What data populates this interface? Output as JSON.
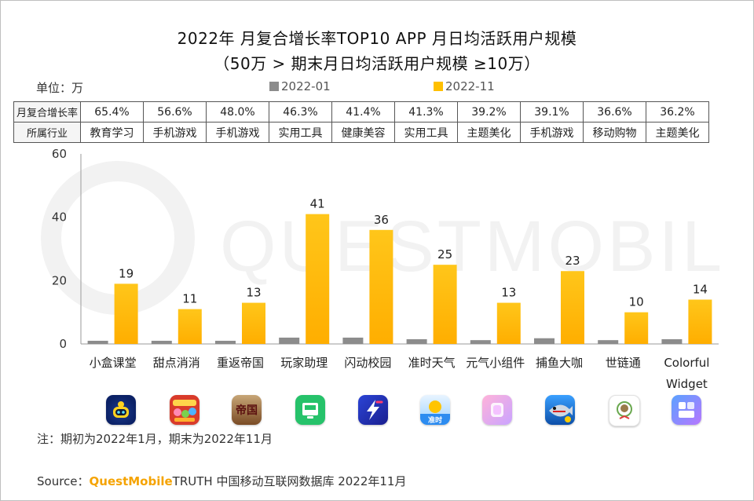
{
  "title": "2022年 月复合增长率TOP10 APP 月日均活跃用户规模",
  "subtitle": "（50万 > 期末月日均活跃用户规模 ≥10万）",
  "unit_label": "单位：万",
  "watermark": "QUESTMOBILE",
  "table": {
    "row1_header": "月复合增长率",
    "row2_header": "所属行业",
    "growth": [
      "65.4%",
      "56.6%",
      "48.0%",
      "46.3%",
      "41.4%",
      "41.3%",
      "39.2%",
      "39.1%",
      "36.6%",
      "36.2%"
    ],
    "industry": [
      "教育学习",
      "手机游戏",
      "手机游戏",
      "实用工具",
      "健康美容",
      "实用工具",
      "主题美化",
      "手机游戏",
      "移动购物",
      "主题美化"
    ]
  },
  "chart_data": {
    "type": "bar",
    "categories": [
      "小盒课堂",
      "甜点消消",
      "重返帝国",
      "玩家助理",
      "闪动校园",
      "准时天气",
      "元气小组件",
      "捕鱼大咖",
      "世链通",
      "Colorful Widget"
    ],
    "series": [
      {
        "name": "2022-01",
        "values": [
          1,
          1,
          1,
          2,
          2,
          1.5,
          1.2,
          1.8,
          1.2,
          1.5
        ],
        "labels_shown": false
      },
      {
        "name": "2022-11",
        "values": [
          19,
          11,
          13,
          41,
          36,
          25,
          13,
          23,
          10,
          14
        ],
        "labels_shown": true
      }
    ],
    "ylim": [
      0,
      60
    ],
    "yticks": [
      0,
      20,
      40,
      60
    ],
    "grid": false,
    "legend_position": "top",
    "colors": {
      "2022-01": "#8c8c8c",
      "2022-11": "#ffc000"
    }
  },
  "icons": [
    "robot-app-icon",
    "candy-game-icon",
    "empire-game-icon",
    "assistant-app-icon",
    "lightning-app-icon",
    "weather-app-icon",
    "widget-app-icon",
    "fishing-game-icon",
    "chain-app-icon",
    "colorful-widget-icon"
  ],
  "icon_texts": {
    "empire": "帝国",
    "weather": "准时"
  },
  "note": "注：期初为2022年1月，期末为2022年11月",
  "source": {
    "prefix": "Source：",
    "brand": "QuestMobile",
    "rest": "TRUTH 中国移动互联网数据库 2022年11月"
  }
}
